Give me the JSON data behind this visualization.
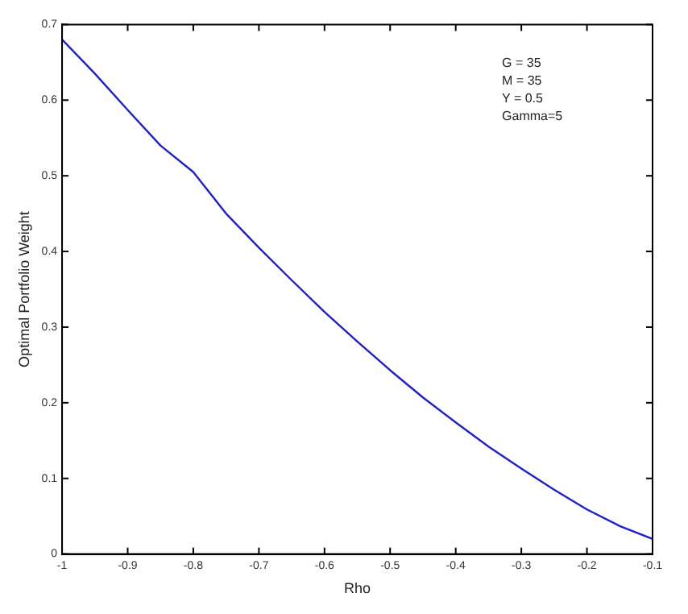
{
  "chart_data": {
    "type": "line",
    "xlabel": "Rho",
    "ylabel": "Optimal Portfolio Weight",
    "x": [
      -1,
      -0.95,
      -0.9,
      -0.85,
      -0.8,
      -0.75,
      -0.7,
      -0.65,
      -0.6,
      -0.55,
      -0.5,
      -0.45,
      -0.4,
      -0.35,
      -0.3,
      -0.25,
      -0.2,
      -0.15,
      -0.1
    ],
    "series": [
      {
        "color": "#1f1fd0",
        "values": [
          0.68,
          0.635,
          0.587,
          0.54,
          0.505,
          0.45,
          0.405,
          0.362,
          0.32,
          0.281,
          0.243,
          0.207,
          0.174,
          0.142,
          0.113,
          0.085,
          0.059,
          0.037,
          0.02
        ]
      }
    ],
    "xlim": [
      -1,
      -0.1
    ],
    "xticks": [
      -1,
      -0.9,
      -0.8,
      -0.7,
      -0.6,
      -0.5,
      -0.4,
      -0.3,
      -0.2,
      -0.1
    ],
    "ylim": [
      0,
      0.7
    ],
    "yticks": [
      0,
      0.1,
      0.2,
      0.3,
      0.4,
      0.5,
      0.6,
      0.7
    ],
    "grid": false,
    "legend": false,
    "marker": "none",
    "line_style": "solid",
    "annotations": [
      "G = 35",
      "M = 35",
      "Y = 0.5",
      "Gamma=5"
    ]
  }
}
